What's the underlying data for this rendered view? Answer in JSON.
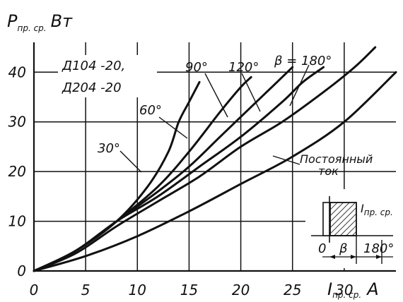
{
  "chart_data": {
    "type": "line",
    "ylabel_main": "P",
    "ylabel_sub": "пр. ср.",
    "ylabel_unit": "Вт",
    "xlabel_main": "I",
    "xlabel_sub": "пр. ср.",
    "xlabel_unit": "А",
    "xlim": [
      0,
      35
    ],
    "ylim": [
      0,
      46
    ],
    "x_ticks": [
      0,
      5,
      10,
      15,
      20,
      25,
      30
    ],
    "x_tick_labels": [
      "0",
      "5",
      "10",
      "15",
      "20",
      "25",
      "30"
    ],
    "y_ticks": [
      0,
      10,
      20,
      30,
      40
    ],
    "y_tick_labels": [
      "0",
      "10",
      "20",
      "30",
      "40"
    ],
    "device_label_1": "Д104 -20,",
    "device_label_2": "Д204 -20",
    "series": [
      {
        "name": "30°",
        "points": [
          [
            0,
            0
          ],
          [
            4,
            4
          ],
          [
            8,
            10
          ],
          [
            11,
            17
          ],
          [
            13,
            24
          ],
          [
            14,
            30
          ],
          [
            15,
            34
          ],
          [
            16,
            38
          ]
        ]
      },
      {
        "name": "60°",
        "points": [
          [
            0,
            0
          ],
          [
            4,
            4
          ],
          [
            8,
            10
          ],
          [
            12,
            17
          ],
          [
            15,
            24
          ],
          [
            18,
            32
          ],
          [
            20,
            37
          ],
          [
            21,
            39
          ]
        ]
      },
      {
        "name": "90°",
        "points": [
          [
            0,
            0
          ],
          [
            4,
            4
          ],
          [
            8,
            10
          ],
          [
            12,
            16
          ],
          [
            15,
            21
          ],
          [
            18,
            27
          ],
          [
            21,
            33
          ],
          [
            23,
            37
          ],
          [
            25,
            41
          ]
        ]
      },
      {
        "name": "120°",
        "points": [
          [
            0,
            0
          ],
          [
            4,
            4
          ],
          [
            8,
            10
          ],
          [
            12,
            15
          ],
          [
            16,
            21
          ],
          [
            20,
            27
          ],
          [
            24,
            34
          ],
          [
            26,
            38
          ],
          [
            28,
            41
          ]
        ]
      },
      {
        "name": "β = 180°",
        "points": [
          [
            0,
            0
          ],
          [
            4,
            3.5
          ],
          [
            8,
            9
          ],
          [
            12,
            14
          ],
          [
            16,
            19
          ],
          [
            20,
            25
          ],
          [
            24,
            30
          ],
          [
            28,
            36
          ],
          [
            31,
            41
          ],
          [
            33,
            45
          ]
        ]
      },
      {
        "name": "Постоянный ток",
        "points": [
          [
            0,
            0
          ],
          [
            5,
            3
          ],
          [
            10,
            7
          ],
          [
            15,
            12
          ],
          [
            20,
            17.5
          ],
          [
            25,
            23
          ],
          [
            30,
            30
          ],
          [
            35,
            40
          ]
        ]
      }
    ],
    "annotations": {
      "lbl_30": "30°",
      "lbl_60": "60°",
      "lbl_90": "90°",
      "lbl_120": "120°",
      "lbl_180": "β = 180°",
      "lbl_dc_1": "Постоянный",
      "lbl_dc_2": "ток"
    },
    "inset": {
      "current_label": "I",
      "current_sub": "пр. ср.",
      "zero_label": "0",
      "beta_label": "β",
      "period_label": "180°"
    },
    "grid": true
  }
}
